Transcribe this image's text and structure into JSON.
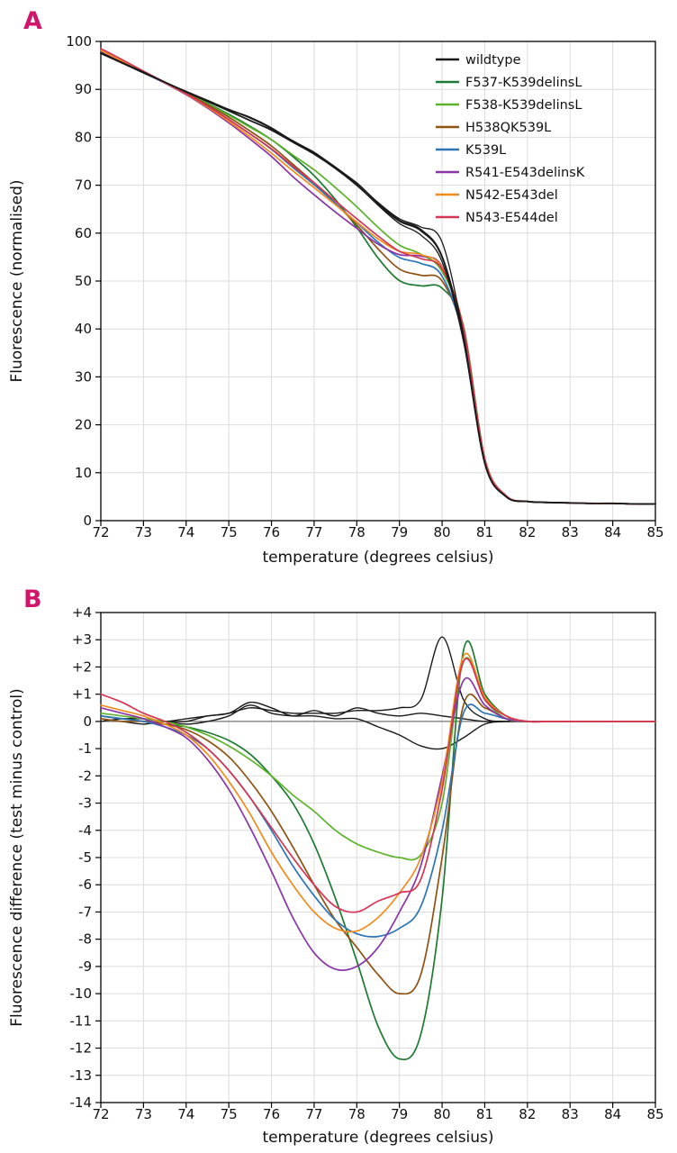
{
  "accent_color": "#d0156b",
  "panel_a": {
    "label": "A"
  },
  "panel_b": {
    "label": "B"
  },
  "chart_data": [
    {
      "type": "line",
      "panel": "A",
      "xlabel": "temperature (degrees celsius)",
      "ylabel": "Fluorescence (normalised)",
      "xlim": [
        72,
        85
      ],
      "ylim": [
        0,
        100
      ],
      "xtick_step": 1,
      "ytick_step": 10,
      "grid": true,
      "legend_position": "top-right",
      "x": [
        72,
        72.5,
        73,
        73.5,
        74,
        74.5,
        75,
        75.5,
        76,
        76.5,
        77,
        77.5,
        78,
        78.5,
        79,
        79.5,
        80,
        80.5,
        81,
        81.5,
        82,
        82.5,
        83,
        83.5,
        84,
        84.5,
        85
      ],
      "series": [
        {
          "name": "wildtype",
          "color": "#1a1a1a",
          "values": [
            97.5,
            95.5,
            93.5,
            91.5,
            89.5,
            87.5,
            85.5,
            83.5,
            81.5,
            79,
            76.5,
            73.5,
            70,
            66,
            62.5,
            60.5,
            55,
            38,
            12,
            5,
            4,
            3.8,
            3.7,
            3.6,
            3.6,
            3.5,
            3.5
          ]
        },
        {
          "name": "F537-K539delinsL",
          "color": "#1f7a33",
          "values": [
            97.7,
            95.6,
            93.5,
            91.4,
            89.3,
            87.1,
            84.8,
            82.3,
            79.5,
            76,
            72,
            67,
            61.2,
            54.8,
            50.1,
            49,
            48.5,
            40.6,
            13,
            5.2,
            4,
            3.8,
            3.7,
            3.6,
            3.6,
            3.5,
            3.5
          ]
        },
        {
          "name": "F538-K539delinsL",
          "color": "#5cb32b",
          "values": [
            97.8,
            95.7,
            93.6,
            91.5,
            89.3,
            87,
            84.6,
            82.1,
            79.5,
            76.3,
            73.2,
            69.5,
            65.5,
            61.2,
            57.5,
            55.6,
            52,
            40.2,
            12.8,
            5.1,
            4,
            3.8,
            3.7,
            3.6,
            3.6,
            3.5,
            3.5
          ]
        },
        {
          "name": "H538QK539L",
          "color": "#8e5313",
          "values": [
            97.6,
            95.5,
            93.5,
            91.4,
            89.2,
            86.8,
            84.2,
            81.3,
            78.2,
            74.4,
            70.5,
            66.2,
            61.7,
            56.7,
            52.5,
            51.2,
            50,
            38.6,
            12.5,
            5.1,
            4,
            3.8,
            3.7,
            3.6,
            3.6,
            3.5,
            3.5
          ]
        },
        {
          "name": "K539L",
          "color": "#2d76b5",
          "values": [
            97.7,
            95.6,
            93.5,
            91.3,
            89,
            86.5,
            83.7,
            80.7,
            77.5,
            73.7,
            70.1,
            66.2,
            62.2,
            58.1,
            54.9,
            53.7,
            51,
            38.3,
            12.3,
            5.1,
            4,
            3.8,
            3.7,
            3.6,
            3.6,
            3.5,
            3.5
          ]
        },
        {
          "name": "R541-E543delinsK",
          "color": "#8a35a8",
          "values": [
            98,
            95.8,
            93.6,
            91.3,
            88.9,
            86.1,
            83,
            79.6,
            76,
            71.8,
            68,
            64.4,
            61,
            57.7,
            55.5,
            55.2,
            53,
            39.5,
            12.6,
            5.1,
            4,
            3.8,
            3.7,
            3.6,
            3.6,
            3.5,
            3.5
          ]
        },
        {
          "name": "N542-E543del",
          "color": "#f28b1d",
          "values": [
            98.1,
            95.9,
            93.7,
            91.4,
            89,
            86.3,
            83.3,
            80.1,
            76.7,
            73,
            69.5,
            65.9,
            62.3,
            58.8,
            56.2,
            55.5,
            52.8,
            40.4,
            12.9,
            5.2,
            4,
            3.8,
            3.7,
            3.6,
            3.6,
            3.5,
            3.5
          ]
        },
        {
          "name": "N543-E544del",
          "color": "#d63452",
          "values": [
            98.5,
            96.2,
            93.8,
            91.5,
            89.1,
            86.5,
            83.7,
            80.7,
            77.6,
            74,
            70.5,
            66.7,
            63,
            59.4,
            56.2,
            54.7,
            52.5,
            40.2,
            12.8,
            5.2,
            4,
            3.8,
            3.7,
            3.6,
            3.6,
            3.5,
            3.5
          ]
        }
      ]
    },
    {
      "type": "line",
      "panel": "B",
      "xlabel": "temperature (degrees celsius)",
      "ylabel": "Fluorescence difference (test minus control)",
      "xlim": [
        72,
        85
      ],
      "ylim": [
        -14,
        4
      ],
      "xtick_step": 1,
      "ytick_step": 1,
      "signed_ticks": true,
      "zero_line": true,
      "grid": true,
      "x": [
        72,
        72.5,
        73,
        73.5,
        74,
        74.5,
        75,
        75.5,
        76,
        76.5,
        77,
        77.5,
        78,
        78.5,
        79,
        79.5,
        80,
        80.5,
        81,
        81.5,
        82,
        82.5,
        83,
        83.5,
        84,
        84.5,
        85
      ],
      "series": [
        {
          "name": "F537-K539delinsL",
          "color": "#1f7a33",
          "values": [
            0.2,
            0.1,
            0,
            -0.1,
            -0.2,
            -0.4,
            -0.7,
            -1.2,
            -2,
            -3,
            -4.5,
            -6.5,
            -8.8,
            -11.2,
            -12.4,
            -11.5,
            -6.5,
            2.6,
            1,
            0.2,
            0,
            0,
            0,
            0,
            0,
            0,
            0
          ]
        },
        {
          "name": "F538-K539delinsL",
          "color": "#5cb32b",
          "values": [
            0.3,
            0.2,
            0.1,
            0,
            -0.2,
            -0.5,
            -0.9,
            -1.4,
            -2,
            -2.7,
            -3.3,
            -4,
            -4.5,
            -4.8,
            -5,
            -4.9,
            -3,
            2.2,
            0.8,
            0.1,
            0,
            0,
            0,
            0,
            0,
            0,
            0
          ]
        },
        {
          "name": "H538QK539L",
          "color": "#8e5313",
          "values": [
            0.1,
            0,
            0,
            -0.1,
            -0.3,
            -0.7,
            -1.3,
            -2.2,
            -3.3,
            -4.6,
            -6,
            -7.3,
            -8.3,
            -9.3,
            -10,
            -9.3,
            -5,
            0.6,
            0.5,
            0.1,
            0,
            0,
            0,
            0,
            0,
            0,
            0
          ]
        },
        {
          "name": "K539L",
          "color": "#2d76b5",
          "values": [
            0.2,
            0.1,
            0,
            -0.2,
            -0.5,
            -1,
            -1.8,
            -2.8,
            -4,
            -5.3,
            -6.4,
            -7.3,
            -7.8,
            -7.9,
            -7.6,
            -6.8,
            -4,
            0.3,
            0.3,
            0.1,
            0,
            0,
            0,
            0,
            0,
            0,
            0
          ]
        },
        {
          "name": "R541-E543delinsK",
          "color": "#8a35a8",
          "values": [
            0.5,
            0.3,
            0.1,
            -0.2,
            -0.6,
            -1.4,
            -2.5,
            -3.9,
            -5.5,
            -7.2,
            -8.5,
            -9.1,
            -9,
            -8.3,
            -7,
            -5.3,
            -2,
            1.5,
            0.6,
            0.1,
            0,
            0,
            0,
            0,
            0,
            0,
            0
          ]
        },
        {
          "name": "N542-E543del",
          "color": "#f28b1d",
          "values": [
            0.6,
            0.4,
            0.2,
            -0.1,
            -0.5,
            -1.2,
            -2.2,
            -3.4,
            -4.8,
            -6,
            -7,
            -7.6,
            -7.7,
            -7.2,
            -6.3,
            -5,
            -2.2,
            2.4,
            0.9,
            0.2,
            0,
            0,
            0,
            0,
            0,
            0,
            0
          ]
        },
        {
          "name": "N543-E544del",
          "color": "#d63452",
          "values": [
            1,
            0.7,
            0.3,
            0,
            -0.4,
            -1,
            -1.8,
            -2.8,
            -3.9,
            -5,
            -6,
            -6.8,
            -7,
            -6.6,
            -6.3,
            -5.8,
            -2.5,
            2.2,
            0.8,
            0.2,
            0,
            0,
            0,
            0,
            0,
            0,
            0
          ]
        }
      ],
      "controls": [
        {
          "name": "wildtype replicate",
          "color": "#1a1a1a",
          "values": [
            0.2,
            0.1,
            0.1,
            0,
            0.1,
            0.2,
            0.3,
            0.5,
            0.4,
            0.3,
            0.3,
            0.3,
            0.4,
            0.4,
            0.5,
            0.8,
            3.1,
            0.8,
            0.1,
            0,
            0,
            0,
            0,
            0,
            0,
            0,
            0
          ]
        },
        {
          "name": "wildtype replicate",
          "color": "#1a1a1a",
          "values": [
            0,
            0.1,
            0.1,
            0,
            -0.1,
            0,
            0.2,
            0.6,
            0.3,
            0.2,
            0.2,
            0.1,
            0.1,
            -0.2,
            -0.5,
            -0.9,
            -1,
            -0.6,
            -0.1,
            0,
            0,
            0,
            0,
            0,
            0,
            0,
            0
          ]
        },
        {
          "name": "wildtype replicate",
          "color": "#1a1a1a",
          "values": [
            0.1,
            0,
            -0.1,
            0,
            0,
            0.2,
            0.3,
            0.7,
            0.5,
            0.2,
            0.4,
            0.2,
            0.5,
            0.3,
            0.2,
            0.3,
            0.2,
            0.1,
            0,
            0,
            0,
            0,
            0,
            0,
            0,
            0,
            0
          ]
        }
      ]
    }
  ]
}
